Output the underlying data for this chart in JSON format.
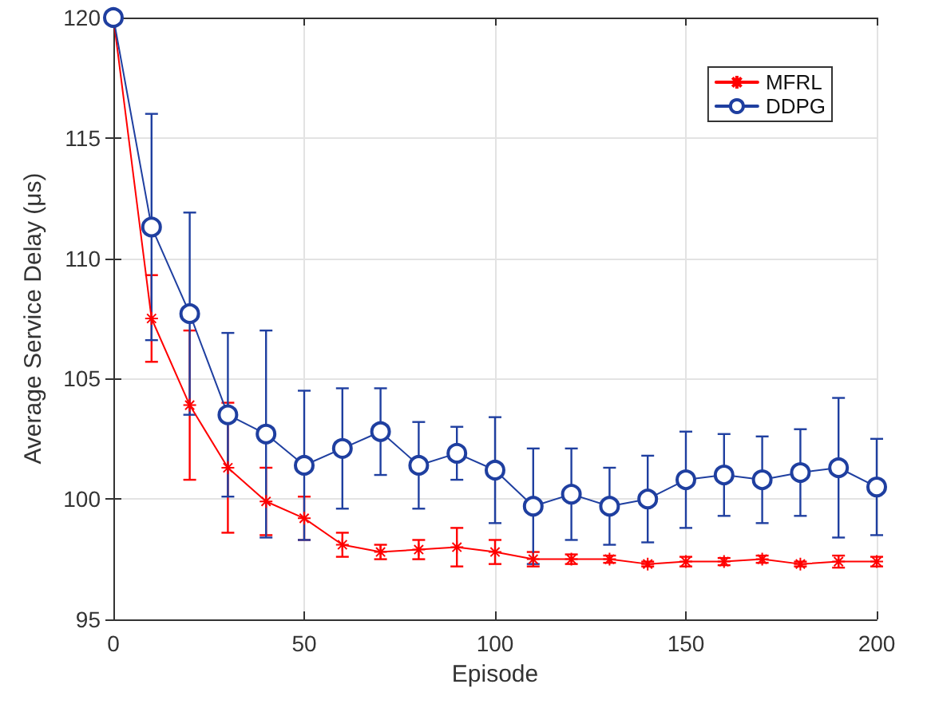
{
  "chart_data": {
    "type": "line",
    "xlabel": "Episode",
    "ylabel": "Average Service Delay (μs)",
    "x": [
      0,
      10,
      20,
      30,
      40,
      50,
      60,
      70,
      80,
      90,
      100,
      110,
      120,
      130,
      140,
      150,
      160,
      170,
      180,
      190,
      200
    ],
    "xlim": [
      0,
      200
    ],
    "xticks": [
      0,
      50,
      100,
      150,
      200
    ],
    "ylim": [
      95,
      120
    ],
    "yticks": [
      95,
      100,
      105,
      110,
      115,
      120
    ],
    "grid": true,
    "legend": "top right",
    "line_style": "solid",
    "series": [
      {
        "name": "MFRL",
        "color": "#ff0000",
        "marker": "cross",
        "values": [
          120,
          107.5,
          103.9,
          101.3,
          99.9,
          99.2,
          98.1,
          97.8,
          97.9,
          98.0,
          97.8,
          97.5,
          97.5,
          97.5,
          97.3,
          97.4,
          97.4,
          97.5,
          97.3,
          97.4,
          97.4
        ],
        "errors": [
          null,
          1.8,
          3.1,
          2.7,
          1.4,
          0.9,
          0.5,
          0.3,
          0.4,
          0.8,
          0.5,
          0.3,
          0.2,
          0.15,
          0.1,
          0.2,
          0.15,
          0.15,
          0.1,
          0.25,
          0.2
        ]
      },
      {
        "name": "DDPG",
        "color": "#1f3fa0",
        "marker": "circle",
        "values": [
          120,
          111.3,
          107.7,
          103.5,
          102.7,
          101.4,
          102.1,
          102.8,
          101.4,
          101.9,
          101.2,
          99.7,
          100.2,
          99.7,
          100.0,
          100.8,
          101.0,
          100.8,
          101.1,
          101.3,
          100.5
        ],
        "errors": [
          null,
          4.7,
          4.2,
          3.4,
          4.3,
          3.1,
          2.5,
          1.8,
          1.8,
          1.1,
          2.2,
          2.4,
          1.9,
          1.6,
          1.8,
          2.0,
          1.7,
          1.8,
          1.8,
          2.9,
          2.0
        ]
      }
    ]
  }
}
